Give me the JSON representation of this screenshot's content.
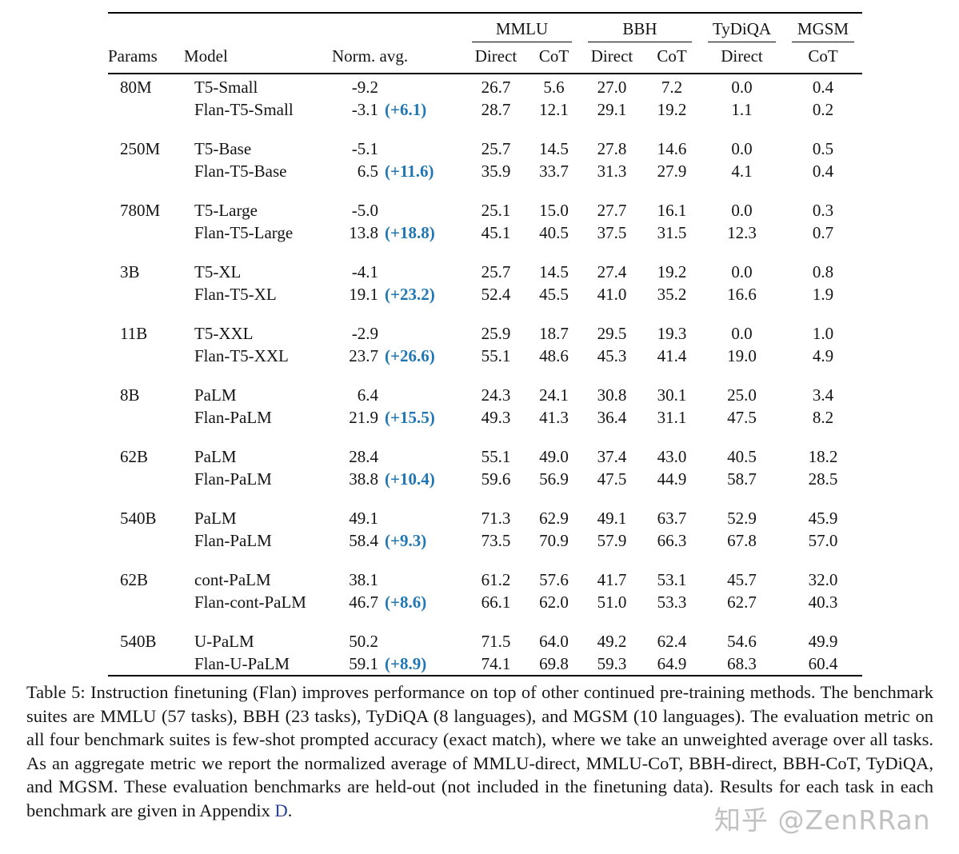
{
  "table": {
    "headers": {
      "params": "Params",
      "model": "Model",
      "norm_avg": "Norm. avg."
    },
    "col_groups": [
      {
        "label": "MMLU",
        "cols": [
          "Direct",
          "CoT"
        ]
      },
      {
        "label": "BBH",
        "cols": [
          "Direct",
          "CoT"
        ]
      },
      {
        "label": "TyDiQA",
        "cols": [
          "Direct"
        ]
      },
      {
        "label": "MGSM",
        "cols": [
          "CoT"
        ]
      }
    ],
    "groups": [
      {
        "params": "80M",
        "rows": [
          {
            "model": "T5-Small",
            "norm": "-9.2",
            "delta": "",
            "values": [
              "26.7",
              "5.6",
              "27.0",
              "7.2",
              "0.0",
              "0.4"
            ]
          },
          {
            "model": "Flan-T5-Small",
            "norm": "-3.1",
            "delta": "(+6.1)",
            "values": [
              "28.7",
              "12.1",
              "29.1",
              "19.2",
              "1.1",
              "0.2"
            ]
          }
        ]
      },
      {
        "params": "250M",
        "rows": [
          {
            "model": "T5-Base",
            "norm": "-5.1",
            "delta": "",
            "values": [
              "25.7",
              "14.5",
              "27.8",
              "14.6",
              "0.0",
              "0.5"
            ]
          },
          {
            "model": "Flan-T5-Base",
            "norm": "6.5",
            "delta": "(+11.6)",
            "values": [
              "35.9",
              "33.7",
              "31.3",
              "27.9",
              "4.1",
              "0.4"
            ]
          }
        ]
      },
      {
        "params": "780M",
        "rows": [
          {
            "model": "T5-Large",
            "norm": "-5.0",
            "delta": "",
            "values": [
              "25.1",
              "15.0",
              "27.7",
              "16.1",
              "0.0",
              "0.3"
            ]
          },
          {
            "model": "Flan-T5-Large",
            "norm": "13.8",
            "delta": "(+18.8)",
            "values": [
              "45.1",
              "40.5",
              "37.5",
              "31.5",
              "12.3",
              "0.7"
            ]
          }
        ]
      },
      {
        "params": "3B",
        "rows": [
          {
            "model": "T5-XL",
            "norm": "-4.1",
            "delta": "",
            "values": [
              "25.7",
              "14.5",
              "27.4",
              "19.2",
              "0.0",
              "0.8"
            ]
          },
          {
            "model": "Flan-T5-XL",
            "norm": "19.1",
            "delta": "(+23.2)",
            "values": [
              "52.4",
              "45.5",
              "41.0",
              "35.2",
              "16.6",
              "1.9"
            ]
          }
        ]
      },
      {
        "params": "11B",
        "rows": [
          {
            "model": "T5-XXL",
            "norm": "-2.9",
            "delta": "",
            "values": [
              "25.9",
              "18.7",
              "29.5",
              "19.3",
              "0.0",
              "1.0"
            ]
          },
          {
            "model": "Flan-T5-XXL",
            "norm": "23.7",
            "delta": "(+26.6)",
            "values": [
              "55.1",
              "48.6",
              "45.3",
              "41.4",
              "19.0",
              "4.9"
            ]
          }
        ]
      },
      {
        "params": "8B",
        "rows": [
          {
            "model": "PaLM",
            "norm": "6.4",
            "delta": "",
            "values": [
              "24.3",
              "24.1",
              "30.8",
              "30.1",
              "25.0",
              "3.4"
            ]
          },
          {
            "model": "Flan-PaLM",
            "norm": "21.9",
            "delta": "(+15.5)",
            "values": [
              "49.3",
              "41.3",
              "36.4",
              "31.1",
              "47.5",
              "8.2"
            ]
          }
        ]
      },
      {
        "params": "62B",
        "rows": [
          {
            "model": "PaLM",
            "norm": "28.4",
            "delta": "",
            "values": [
              "55.1",
              "49.0",
              "37.4",
              "43.0",
              "40.5",
              "18.2"
            ]
          },
          {
            "model": "Flan-PaLM",
            "norm": "38.8",
            "delta": "(+10.4)",
            "values": [
              "59.6",
              "56.9",
              "47.5",
              "44.9",
              "58.7",
              "28.5"
            ]
          }
        ]
      },
      {
        "params": "540B",
        "rows": [
          {
            "model": "PaLM",
            "norm": "49.1",
            "delta": "",
            "values": [
              "71.3",
              "62.9",
              "49.1",
              "63.7",
              "52.9",
              "45.9"
            ]
          },
          {
            "model": "Flan-PaLM",
            "norm": "58.4",
            "delta": "(+9.3)",
            "values": [
              "73.5",
              "70.9",
              "57.9",
              "66.3",
              "67.8",
              "57.0"
            ]
          }
        ]
      },
      {
        "params": "62B",
        "rows": [
          {
            "model": "cont-PaLM",
            "norm": "38.1",
            "delta": "",
            "values": [
              "61.2",
              "57.6",
              "41.7",
              "53.1",
              "45.7",
              "32.0"
            ]
          },
          {
            "model": "Flan-cont-PaLM",
            "norm": "46.7",
            "delta": "(+8.6)",
            "values": [
              "66.1",
              "62.0",
              "51.0",
              "53.3",
              "62.7",
              "40.3"
            ]
          }
        ]
      },
      {
        "params": "540B",
        "rows": [
          {
            "model": "U-PaLM",
            "norm": "50.2",
            "delta": "",
            "values": [
              "71.5",
              "64.0",
              "49.2",
              "62.4",
              "54.6",
              "49.9"
            ]
          },
          {
            "model": "Flan-U-PaLM",
            "norm": "59.1",
            "delta": "(+8.9)",
            "values": [
              "74.1",
              "69.8",
              "59.3",
              "64.9",
              "68.3",
              "60.4"
            ]
          }
        ]
      }
    ]
  },
  "caption": {
    "text": "Table 5: Instruction finetuning (Flan) improves performance on top of other continued pre-training methods. The benchmark suites are MMLU (57 tasks), BBH (23 tasks), TyDiQA (8 languages), and MGSM (10 languages). The evaluation metric on all four benchmark suites is few-shot prompted accuracy (exact match), where we take an unweighted average over all tasks. As an aggregate metric we report the normalized average of MMLU-direct, MMLU-CoT, BBH-direct, BBH-CoT, TyDiQA, and MGSM. These evaluation benchmarks are held-out (not included in the finetuning data).  Results for each task in each benchmark are given in Appendix ",
    "link": "D",
    "suffix": "."
  },
  "watermark": "知乎 @ZenRRan",
  "colors": {
    "delta_blue": "#2077b4",
    "link_navy": "#26418f"
  }
}
